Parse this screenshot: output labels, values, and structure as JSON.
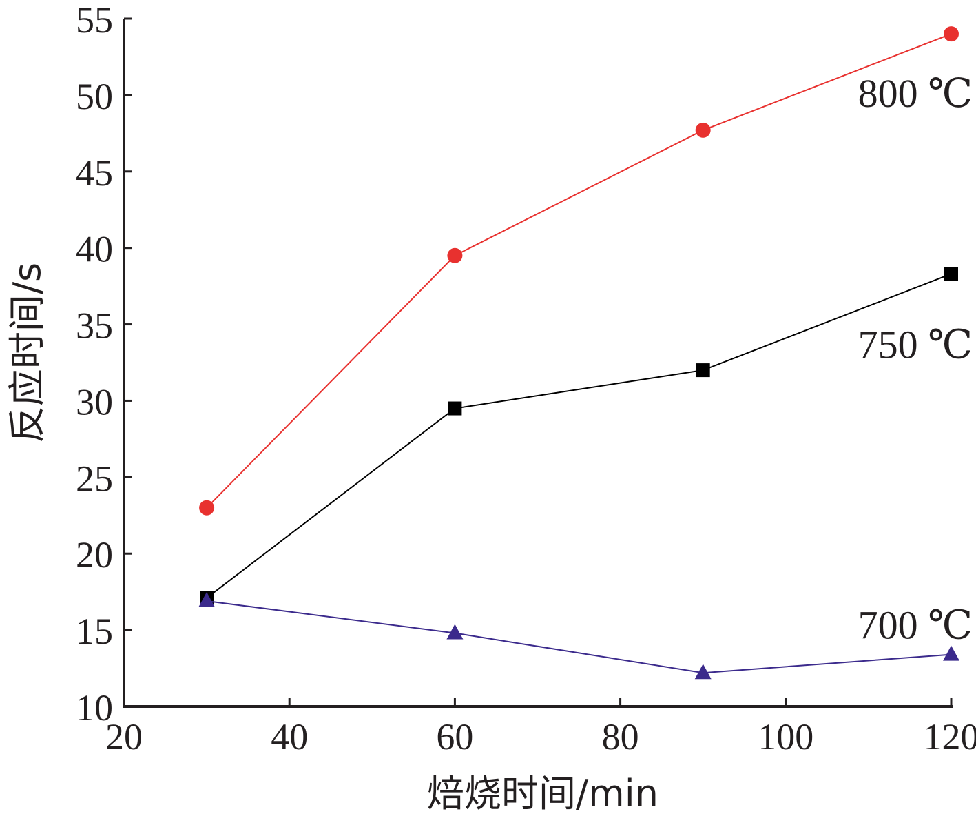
{
  "chart_data": {
    "type": "line",
    "xlabel": "焙烧时间/min",
    "ylabel": "反应时间/s",
    "xlim": [
      20,
      120
    ],
    "ylim": [
      10,
      55
    ],
    "xticks": [
      "20",
      "40",
      "60",
      "80",
      "100",
      "120"
    ],
    "yticks": [
      "10",
      "15",
      "20",
      "25",
      "30",
      "35",
      "40",
      "45",
      "50",
      "55"
    ],
    "grid": false,
    "legend": "none",
    "series": [
      {
        "name": "800 ℃",
        "color": "#e8312f",
        "marker": "circle",
        "x": [
          30,
          60,
          90,
          120
        ],
        "y": [
          23.0,
          39.5,
          47.7,
          54.0
        ]
      },
      {
        "name": "750 ℃",
        "color": "#000000",
        "marker": "square",
        "x": [
          30,
          60,
          90,
          120
        ],
        "y": [
          17.1,
          29.5,
          32.0,
          38.3
        ]
      },
      {
        "name": "700 ℃",
        "color": "#3b2a8c",
        "marker": "triangle",
        "x": [
          30,
          60,
          90,
          120
        ],
        "y": [
          16.9,
          14.8,
          12.2,
          13.4
        ]
      }
    ]
  }
}
